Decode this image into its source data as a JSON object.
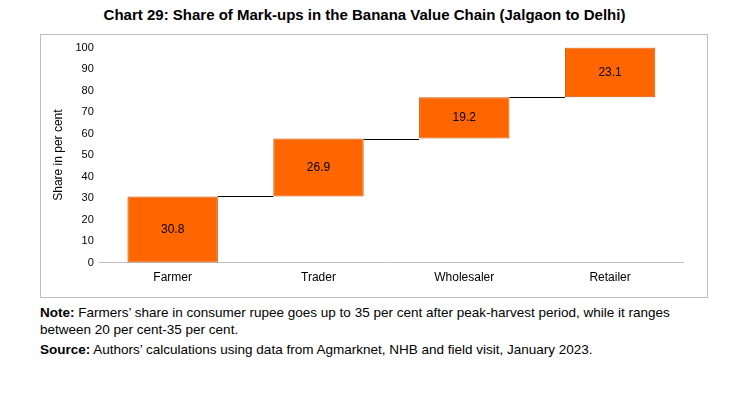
{
  "chart_data": {
    "type": "waterfall",
    "title": "Chart 29: Share of Mark-ups in the Banana Value Chain (Jalgaon to Delhi)",
    "y_label": "Share in per cent",
    "categories": [
      "Farmer",
      "Trader",
      "Wholesaler",
      "Retailer"
    ],
    "values": [
      30.8,
      26.9,
      19.2,
      23.1
    ],
    "color": "#ff6600",
    "ylim": [
      0,
      100
    ],
    "yticks": [
      0,
      10,
      20,
      30,
      40,
      50,
      60,
      70,
      80,
      90,
      100
    ],
    "grid": false,
    "data_labels": true,
    "note_label": "Note:",
    "note": "Farmers’ share in consumer rupee goes up to 35 per cent after peak-harvest period, while it ranges between 20 per cent-35 per cent.",
    "source_label": "Source:",
    "source": "Authors’ calculations using data from Agmarknet, NHB and field visit, January 2023."
  }
}
